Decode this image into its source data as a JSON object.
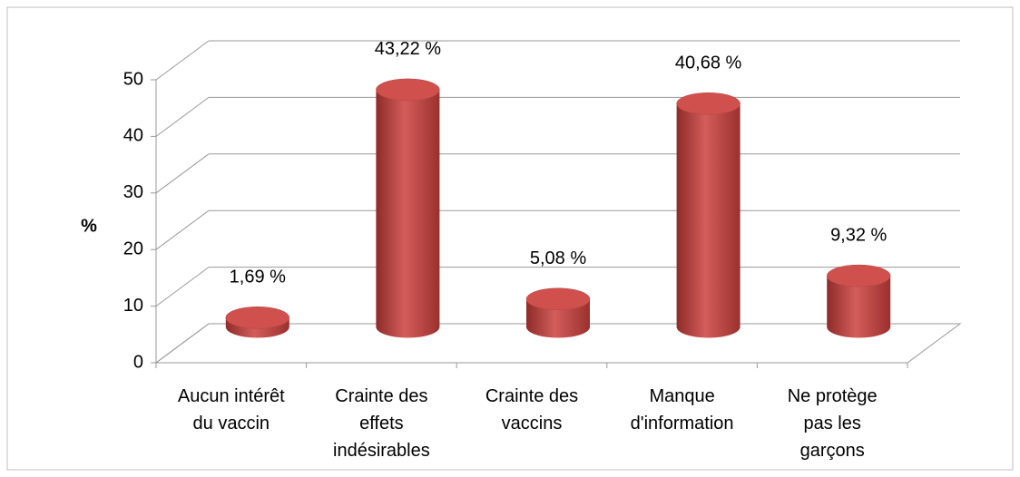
{
  "chart_data": {
    "type": "bar3d",
    "y_axis_label": "%",
    "categories": [
      "Aucun intérêt du vaccin",
      "Crainte des effets indésirables",
      "Crainte des vaccins",
      "Manque d'information",
      "Ne protège pas les garçons"
    ],
    "values": [
      1.69,
      43.22,
      5.08,
      40.68,
      9.32
    ],
    "value_labels": [
      "1,69 %",
      "43,22 %",
      "5,08 %",
      "40,68 %",
      "9,32 %"
    ],
    "color": "#c0504d",
    "ylim": [
      0,
      50
    ],
    "yticks": [
      0,
      10,
      20,
      30,
      40,
      50
    ],
    "grid": true
  }
}
